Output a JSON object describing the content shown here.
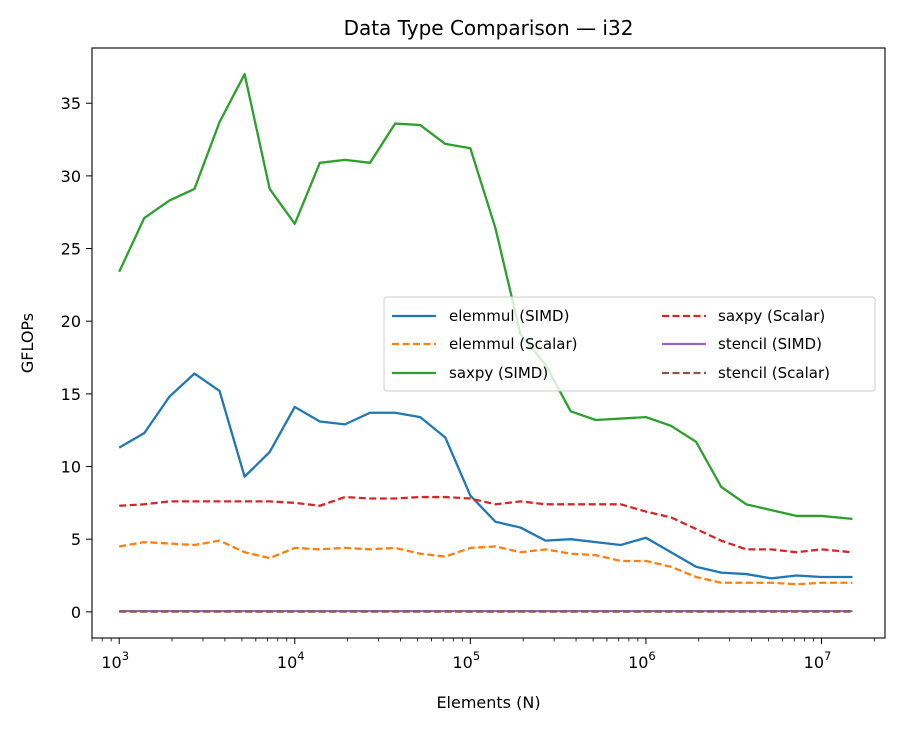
{
  "chart_data": {
    "type": "line",
    "title": "Data Type Comparison — i32",
    "xlabel": "Elements (N)",
    "ylabel": "GFLOPs",
    "xscale": "log",
    "xlim": [
      700,
      23000000
    ],
    "ylim": [
      -1.8,
      38.8
    ],
    "xticks": [
      {
        "value": 1000,
        "base": "10",
        "exp": "3"
      },
      {
        "value": 10000,
        "base": "10",
        "exp": "4"
      },
      {
        "value": 100000,
        "base": "10",
        "exp": "5"
      },
      {
        "value": 1000000,
        "base": "10",
        "exp": "6"
      },
      {
        "value": 10000000,
        "base": "10",
        "exp": "7"
      }
    ],
    "yticks": [
      0,
      5,
      10,
      15,
      20,
      25,
      30,
      35
    ],
    "grid": false,
    "legend_position": "center-right",
    "x": [
      1000,
      1389,
      1931,
      2683,
      3728,
      5179,
      7197,
      10000,
      13895,
      19307,
      26827,
      37276,
      51795,
      71969,
      100000,
      138950,
      193070,
      268270,
      372760,
      517950,
      719690,
      1000000,
      1389500,
      1930700,
      2682700,
      3727600,
      5179500,
      7196900,
      10000000,
      15000000
    ],
    "series": [
      {
        "name": "elemmul (SIMD)",
        "color": "#1f77b4",
        "dash": "solid",
        "values": [
          11.3,
          12.3,
          14.8,
          16.4,
          15.2,
          9.3,
          11.0,
          14.1,
          13.1,
          12.9,
          13.7,
          13.7,
          13.4,
          12.0,
          8.0,
          6.2,
          5.8,
          4.9,
          5.0,
          4.8,
          4.6,
          5.1,
          4.1,
          3.1,
          2.7,
          2.6,
          2.3,
          2.5,
          2.4,
          2.4
        ]
      },
      {
        "name": "elemmul (Scalar)",
        "color": "#ff7f0e",
        "dash": "dashed",
        "values": [
          4.5,
          4.8,
          4.7,
          4.6,
          4.9,
          4.1,
          3.7,
          4.4,
          4.3,
          4.4,
          4.3,
          4.4,
          4.0,
          3.8,
          4.4,
          4.5,
          4.1,
          4.3,
          4.0,
          3.9,
          3.5,
          3.5,
          3.1,
          2.4,
          2.0,
          2.0,
          2.0,
          1.9,
          2.0,
          2.0
        ]
      },
      {
        "name": "saxpy (SIMD)",
        "color": "#2ca02c",
        "dash": "solid",
        "values": [
          23.4,
          27.1,
          28.3,
          29.1,
          33.7,
          37.0,
          29.1,
          26.7,
          30.9,
          31.1,
          30.9,
          33.6,
          33.5,
          32.2,
          31.9,
          26.4,
          19.1,
          17.0,
          13.8,
          13.2,
          13.3,
          13.4,
          12.8,
          11.7,
          8.6,
          7.4,
          7.0,
          6.6,
          6.6,
          6.4
        ]
      },
      {
        "name": "saxpy (Scalar)",
        "color": "#d62728",
        "dash": "dashed",
        "values": [
          7.3,
          7.4,
          7.6,
          7.6,
          7.6,
          7.6,
          7.6,
          7.5,
          7.3,
          7.9,
          7.8,
          7.8,
          7.9,
          7.9,
          7.8,
          7.4,
          7.6,
          7.4,
          7.4,
          7.4,
          7.4,
          6.9,
          6.5,
          5.7,
          4.9,
          4.3,
          4.3,
          4.1,
          4.3,
          4.1
        ]
      },
      {
        "name": "stencil (SIMD)",
        "color": "#9467bd",
        "dash": "solid",
        "values": [
          0.05,
          0.05,
          0.05,
          0.05,
          0.05,
          0.05,
          0.05,
          0.05,
          0.05,
          0.05,
          0.05,
          0.05,
          0.05,
          0.05,
          0.05,
          0.05,
          0.05,
          0.05,
          0.05,
          0.05,
          0.05,
          0.05,
          0.05,
          0.05,
          0.05,
          0.05,
          0.05,
          0.05,
          0.05,
          0.05
        ]
      },
      {
        "name": "stencil (Scalar)",
        "color": "#8c564b",
        "dash": "dashed",
        "values": [
          0.02,
          0.02,
          0.02,
          0.02,
          0.02,
          0.02,
          0.02,
          0.02,
          0.02,
          0.02,
          0.02,
          0.02,
          0.02,
          0.02,
          0.02,
          0.02,
          0.02,
          0.02,
          0.02,
          0.02,
          0.02,
          0.02,
          0.02,
          0.02,
          0.02,
          0.02,
          0.02,
          0.02,
          0.02,
          0.02
        ]
      }
    ]
  }
}
